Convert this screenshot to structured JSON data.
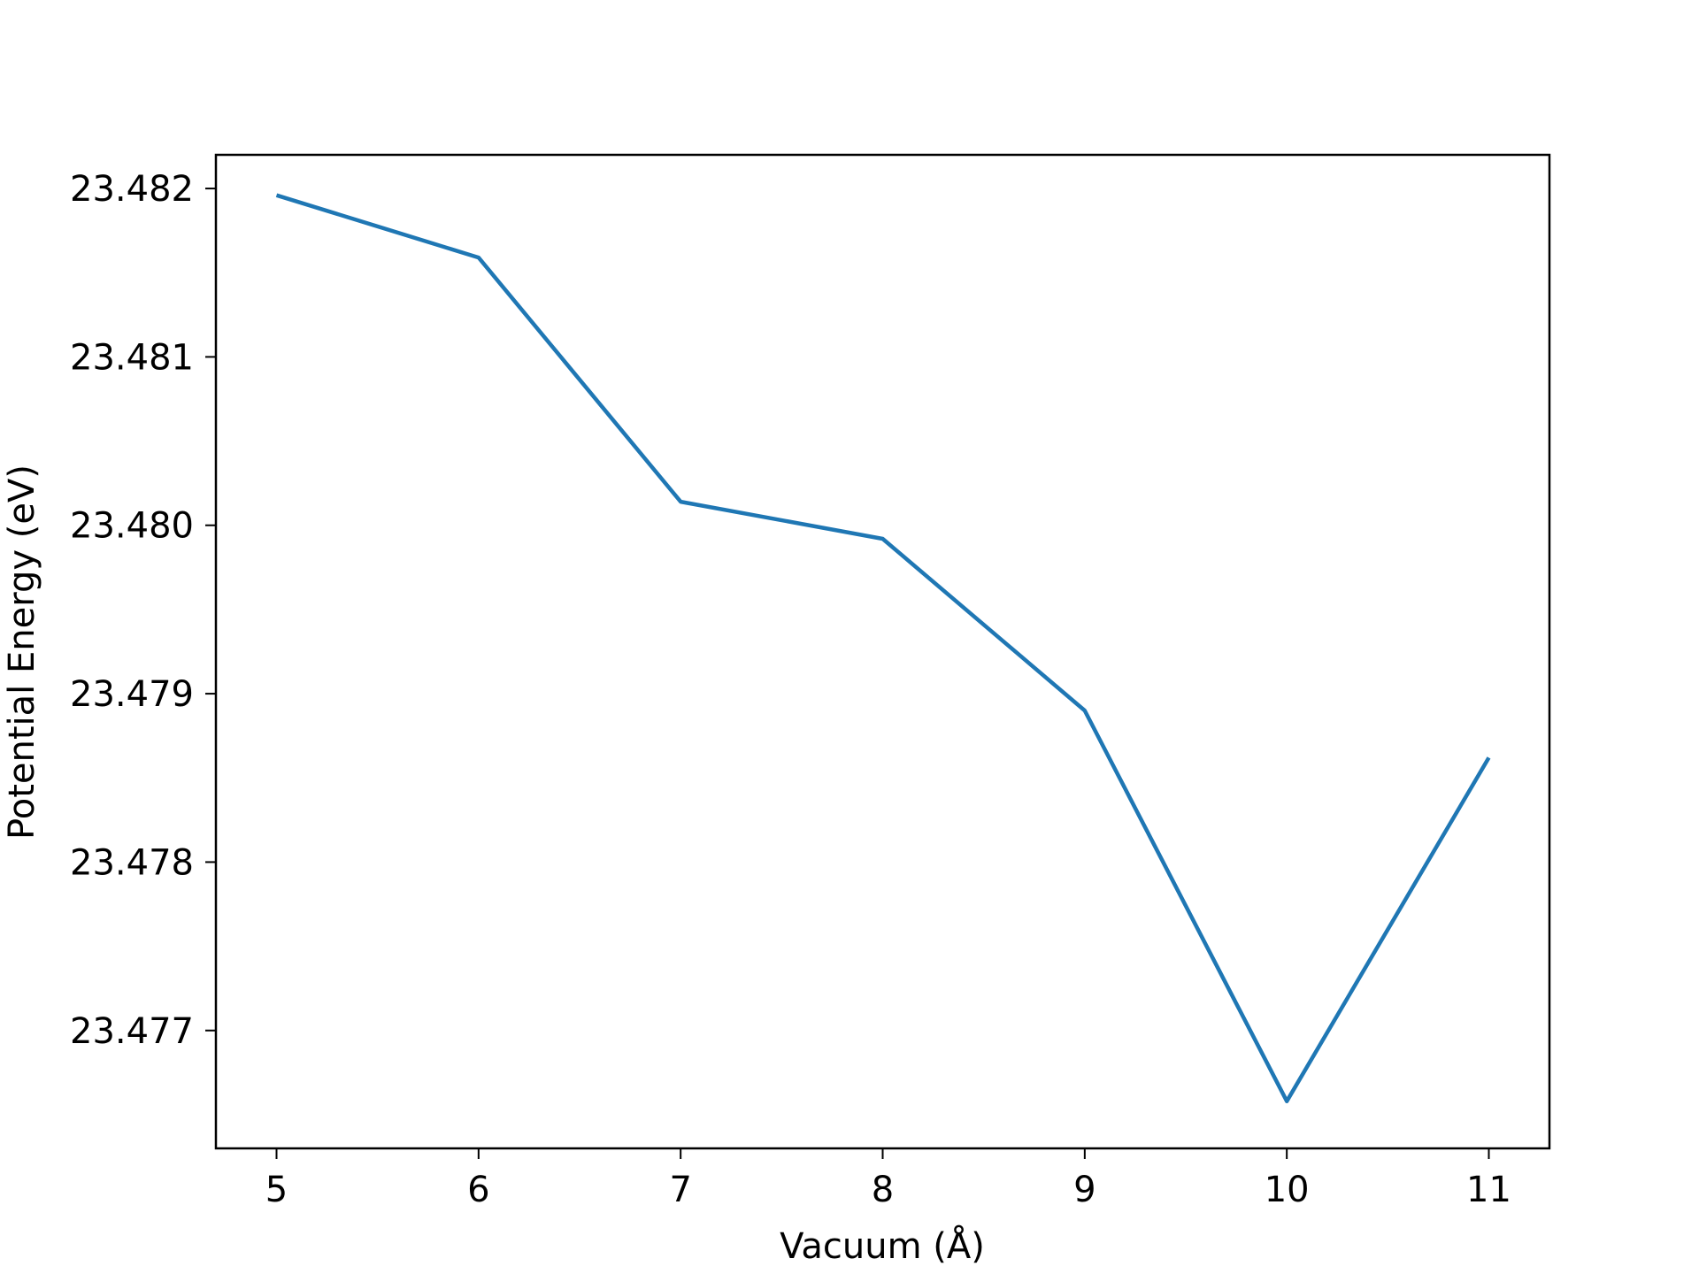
{
  "chart_data": {
    "type": "line",
    "title": "",
    "xlabel": "Vacuum (Å)",
    "ylabel": "Potential Energy (eV)",
    "x_ticks": [
      "5",
      "6",
      "7",
      "8",
      "9",
      "10",
      "11"
    ],
    "y_ticks": [
      "23.477",
      "23.478",
      "23.479",
      "23.480",
      "23.481",
      "23.482"
    ],
    "xlim": [
      4.7,
      11.3
    ],
    "ylim": [
      23.4763,
      23.4822
    ],
    "grid": false,
    "legend": "none",
    "series": [
      {
        "color": "#1f77b4",
        "x": [
          5,
          6,
          7,
          8,
          9,
          10,
          11
        ],
        "y": [
          23.48196,
          23.48159,
          23.48014,
          23.47992,
          23.4789,
          23.47658,
          23.47862
        ]
      }
    ]
  }
}
